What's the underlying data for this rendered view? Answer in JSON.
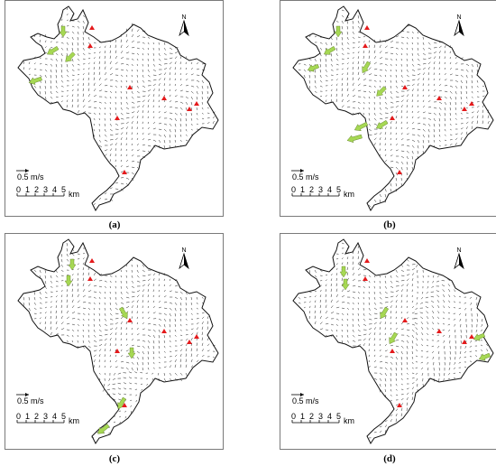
{
  "panels": [
    {
      "id": "a",
      "caption": "(a)",
      "speed_label": "0.5 m/s",
      "scale_ticks": [
        "0",
        "1",
        "2",
        "3",
        "4",
        "5"
      ],
      "scale_unit": "km",
      "north_label": "N",
      "spill_zone": "none"
    },
    {
      "id": "b",
      "caption": "(b)",
      "speed_label": "0.5 m/s",
      "scale_ticks": [
        "0",
        "1",
        "2",
        "3",
        "4",
        "5"
      ],
      "scale_unit": "km",
      "north_label": "N",
      "spill_zone": "west"
    },
    {
      "id": "c",
      "caption": "(c)",
      "speed_label": "0.5 m/s",
      "scale_ticks": [
        "0",
        "1",
        "2",
        "3",
        "4",
        "5"
      ],
      "scale_unit": "km",
      "north_label": "N",
      "spill_zone": "south"
    },
    {
      "id": "d",
      "caption": "(d)",
      "speed_label": "0.5 m/s",
      "scale_ticks": [
        "0",
        "1",
        "2",
        "3",
        "4",
        "5"
      ],
      "scale_unit": "km",
      "north_label": "N",
      "spill_zone": "east"
    }
  ],
  "colors": {
    "outline": "#111111",
    "flow_arrow": "#222222",
    "inflow_arrow": "#a6d854",
    "station_marker": "#e41a1c",
    "frame": "#7a7a7a"
  }
}
